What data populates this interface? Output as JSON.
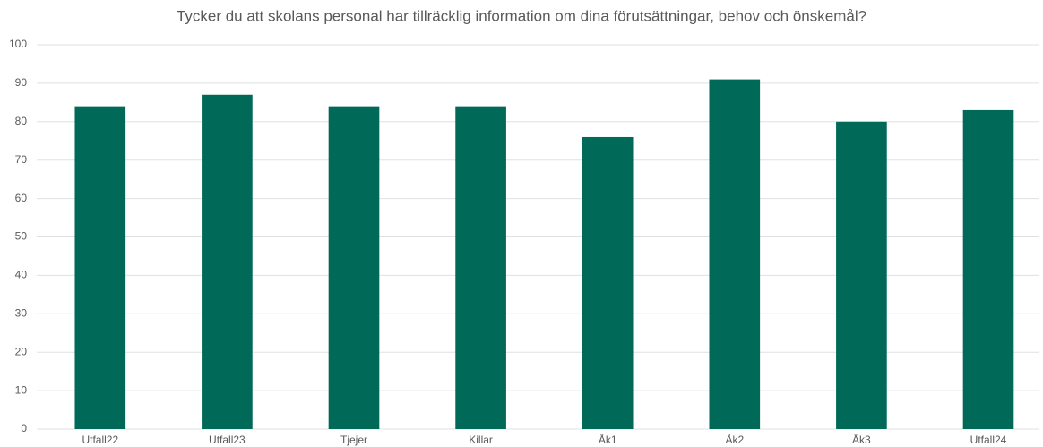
{
  "chart_data": {
    "type": "bar",
    "title": "Tycker du att skolans personal har tillräcklig information om dina förutsättningar, behov och önskemål?",
    "categories": [
      "Utfall22",
      "Utfall23",
      "Tjejer",
      "Killar",
      "Åk1",
      "Åk2",
      "Åk3",
      "Utfall24"
    ],
    "values": [
      84,
      87,
      84,
      84,
      76,
      91,
      80,
      83
    ],
    "color": "#006957",
    "ylim": [
      0,
      100
    ],
    "yticks": [
      0,
      10,
      20,
      30,
      40,
      50,
      60,
      70,
      80,
      90,
      100
    ],
    "grid": true
  }
}
